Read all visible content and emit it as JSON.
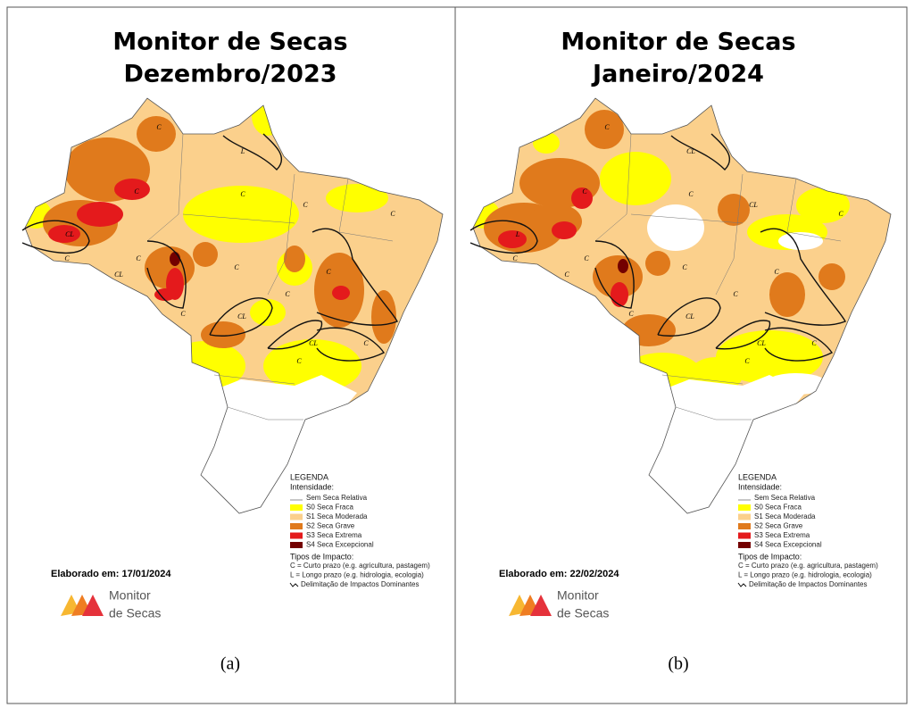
{
  "panels": [
    {
      "title": [
        "Monitor de Secas",
        "Dezembro/2023"
      ],
      "legend": {
        "heading": "LEGENDA",
        "subheading": "Intensidade:",
        "items": [
          "Sem Seca Relativa",
          "S0 Seca Fraca",
          "S1 Seca Moderada",
          "S2 Seca Grave",
          "S3 Seca Extrema",
          "S4 Seca Excepcional"
        ],
        "impact_heading": "Tipos de Impacto:",
        "impact_items": [
          "C = Curto prazo (e.g. agricultura, pastagem)",
          "L = Longo prazo (e.g. hidrologia, ecologia)",
          "Delimitação de Impactos Dominantes"
        ]
      },
      "elaborated": "Elaborado em: 17/01/2024",
      "logo": [
        "Monitor",
        "de Secas"
      ],
      "map_labels": [
        "C",
        "L",
        "C",
        "C",
        "CL",
        "C",
        "C",
        "CL",
        "C",
        "C",
        "C",
        "C",
        "CL",
        "C",
        "CL",
        "C",
        "C",
        "C"
      ],
      "caption": "(a)"
    },
    {
      "title": [
        "Monitor de Secas",
        "Janeiro/2024"
      ],
      "legend": {
        "heading": "LEGENDA",
        "subheading": "Intensidade:",
        "items": [
          "Sem Seca Relativa",
          "S0 Seca Fraca",
          "S1 Seca Moderada",
          "S2 Seca Grave",
          "S3 Seca Extrema",
          "S4 Seca Excepcional"
        ],
        "impact_heading": "Tipos de Impacto:",
        "impact_items": [
          "C = Curto prazo (e.g. agricultura, pastagem)",
          "L = Longo prazo (e.g. hidrologia, ecologia)",
          "Delimitação de Impactos Dominantes"
        ]
      },
      "elaborated": "Elaborado em: 22/02/2024",
      "logo": [
        "Monitor",
        "de Secas"
      ],
      "map_labels": [
        "C",
        "CL",
        "C",
        "C",
        "L",
        "C",
        "C",
        "C",
        "C",
        "CL",
        "C",
        "C",
        "CL",
        "C",
        "CL",
        "C",
        "C",
        "C"
      ],
      "caption": "(b)"
    }
  ]
}
